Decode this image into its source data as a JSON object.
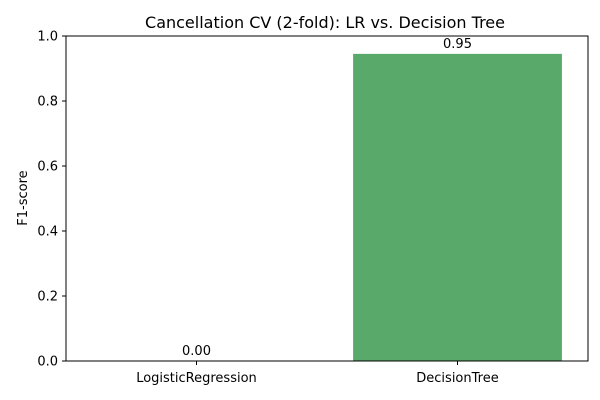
{
  "chart_data": {
    "type": "bar",
    "title": "Cancellation CV (2-fold): LR vs. Decision Tree",
    "xlabel": "",
    "ylabel": "F1-score",
    "categories": [
      "LogisticRegression",
      "DecisionTree"
    ],
    "values": [
      0.0,
      0.945
    ],
    "data_labels": [
      "0.00",
      "0.95"
    ],
    "ylim": [
      0,
      1.0
    ],
    "yticks": [
      0.0,
      0.2,
      0.4,
      0.6,
      0.8,
      1.0
    ],
    "ytick_labels": [
      "0.0",
      "0.2",
      "0.4",
      "0.6",
      "0.8",
      "1.0"
    ],
    "grid": false,
    "colors": {
      "bar": "#59a96a",
      "axis": "#000000"
    }
  }
}
